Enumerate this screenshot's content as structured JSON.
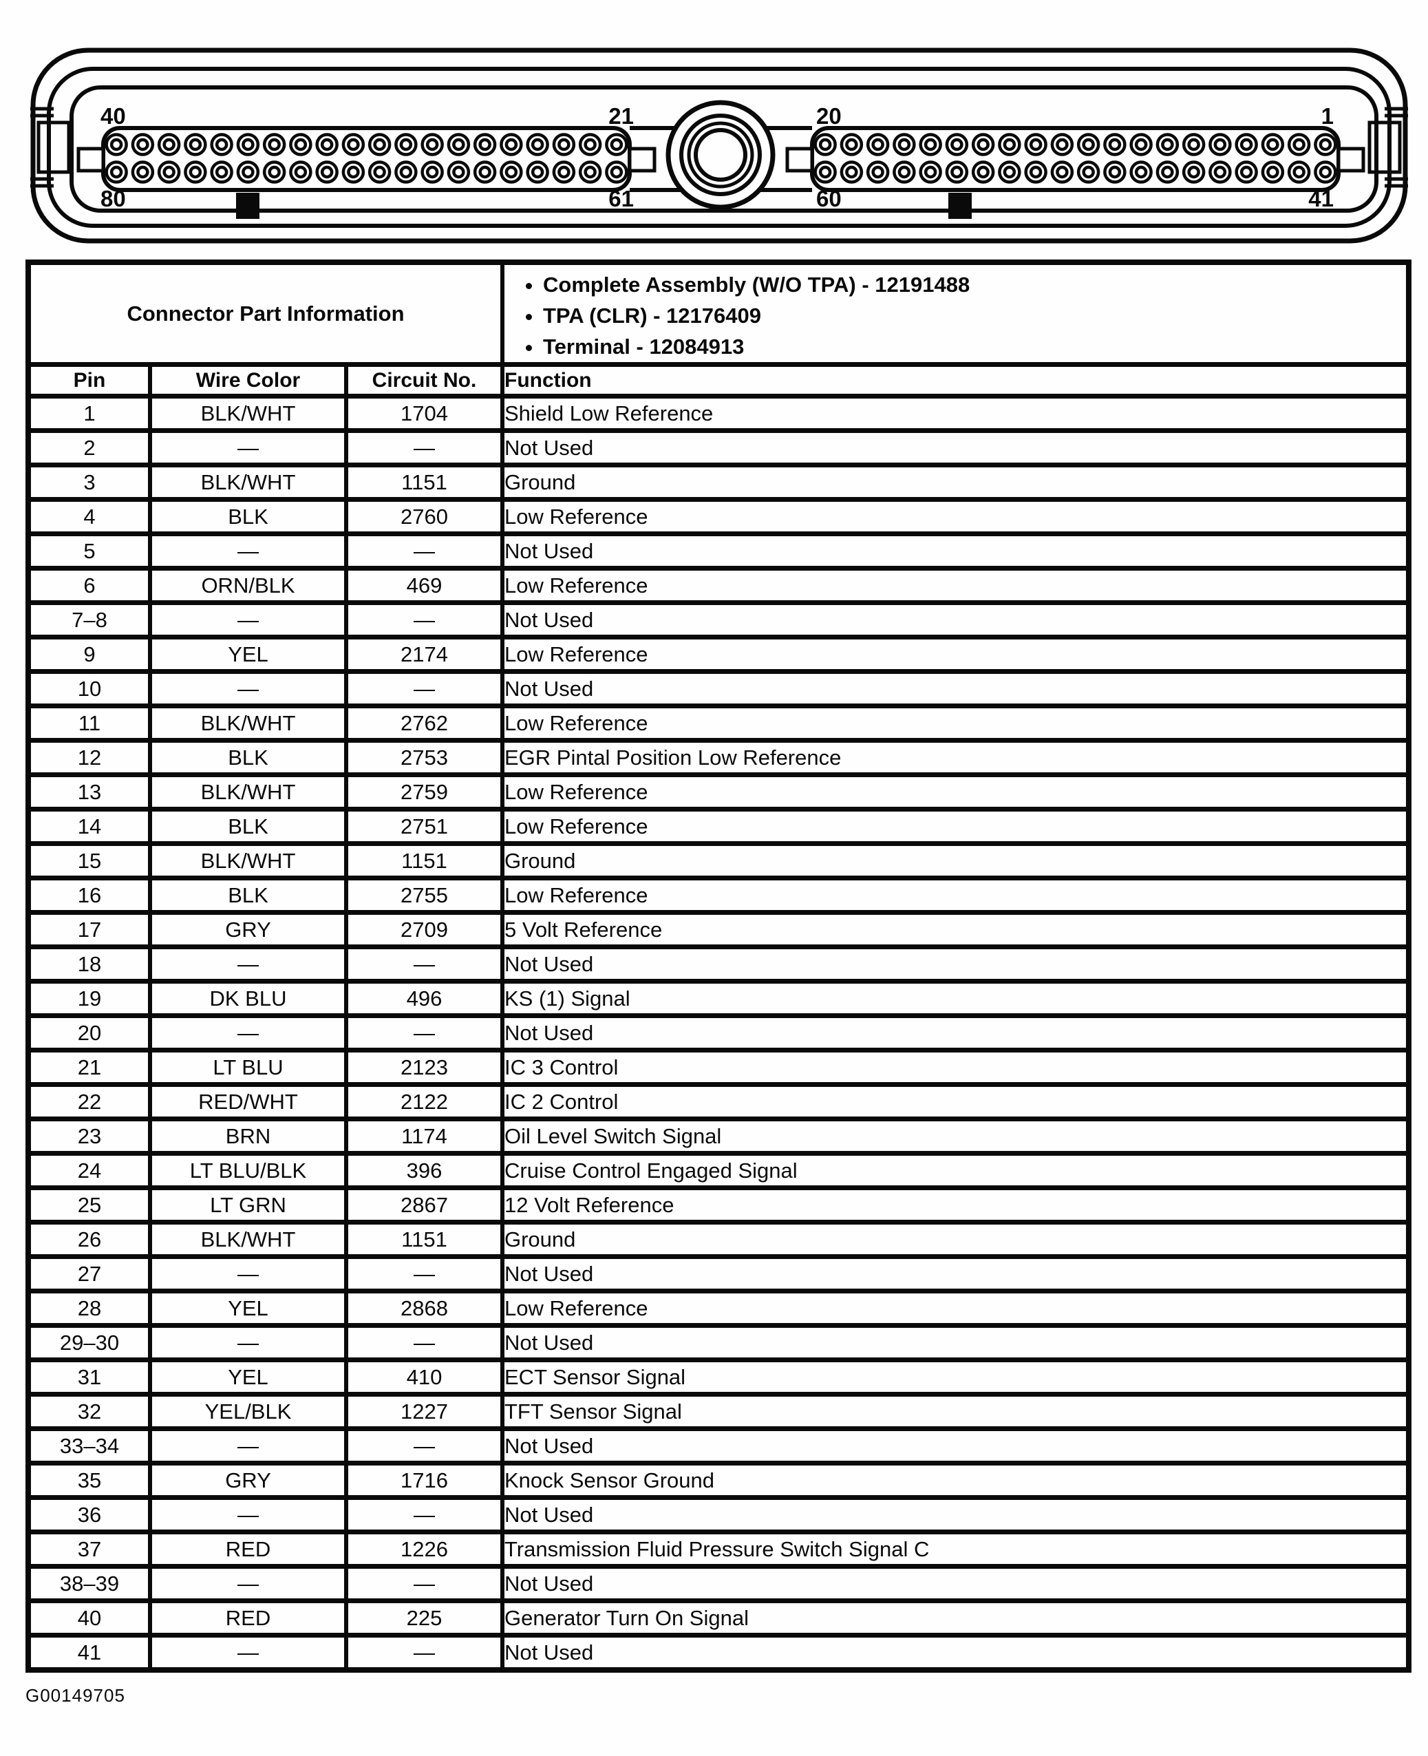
{
  "figure": {
    "pins_per_row": 20,
    "left_bank": {
      "top_left": "40",
      "top_right": "21",
      "bottom_left": "80",
      "bottom_right": "61"
    },
    "right_bank": {
      "top_left": "20",
      "top_right": "1",
      "bottom_left": "60",
      "bottom_right": "41"
    }
  },
  "part_info": {
    "title": "Connector Part Information",
    "items": [
      "Complete Assembly (W/O TPA) - 12191488",
      "TPA (CLR) - 12176409",
      "Terminal - 12084913"
    ]
  },
  "table": {
    "headers": [
      "Pin",
      "Wire Color",
      "Circuit No.",
      "Function"
    ],
    "rows": [
      [
        "1",
        "BLK/WHT",
        "1704",
        "Shield Low Reference"
      ],
      [
        "2",
        "—",
        "—",
        "Not Used"
      ],
      [
        "3",
        "BLK/WHT",
        "1151",
        "Ground"
      ],
      [
        "4",
        "BLK",
        "2760",
        "Low Reference"
      ],
      [
        "5",
        "—",
        "—",
        "Not Used"
      ],
      [
        "6",
        "ORN/BLK",
        "469",
        "Low Reference"
      ],
      [
        "7–8",
        "—",
        "—",
        "Not Used"
      ],
      [
        "9",
        "YEL",
        "2174",
        "Low Reference"
      ],
      [
        "10",
        "—",
        "—",
        "Not Used"
      ],
      [
        "11",
        "BLK/WHT",
        "2762",
        "Low Reference"
      ],
      [
        "12",
        "BLK",
        "2753",
        "EGR Pintal Position Low Reference"
      ],
      [
        "13",
        "BLK/WHT",
        "2759",
        "Low Reference"
      ],
      [
        "14",
        "BLK",
        "2751",
        "Low Reference"
      ],
      [
        "15",
        "BLK/WHT",
        "1151",
        "Ground"
      ],
      [
        "16",
        "BLK",
        "2755",
        "Low Reference"
      ],
      [
        "17",
        "GRY",
        "2709",
        "5 Volt Reference"
      ],
      [
        "18",
        "—",
        "—",
        "Not Used"
      ],
      [
        "19",
        "DK BLU",
        "496",
        "KS (1) Signal"
      ],
      [
        "20",
        "—",
        "—",
        "Not Used"
      ],
      [
        "21",
        "LT BLU",
        "2123",
        "IC 3 Control"
      ],
      [
        "22",
        "RED/WHT",
        "2122",
        "IC 2 Control"
      ],
      [
        "23",
        "BRN",
        "1174",
        "Oil Level Switch Signal"
      ],
      [
        "24",
        "LT BLU/BLK",
        "396",
        "Cruise Control Engaged Signal"
      ],
      [
        "25",
        "LT GRN",
        "2867",
        "12 Volt Reference"
      ],
      [
        "26",
        "BLK/WHT",
        "1151",
        "Ground"
      ],
      [
        "27",
        "—",
        "—",
        "Not Used"
      ],
      [
        "28",
        "YEL",
        "2868",
        "Low Reference"
      ],
      [
        "29–30",
        "—",
        "—",
        "Not Used"
      ],
      [
        "31",
        "YEL",
        "410",
        "ECT Sensor Signal"
      ],
      [
        "32",
        "YEL/BLK",
        "1227",
        "TFT Sensor Signal"
      ],
      [
        "33–34",
        "—",
        "—",
        "Not Used"
      ],
      [
        "35",
        "GRY",
        "1716",
        "Knock Sensor Ground"
      ],
      [
        "36",
        "—",
        "—",
        "Not Used"
      ],
      [
        "37",
        "RED",
        "1226",
        "Transmission Fluid Pressure Switch Signal C"
      ],
      [
        "38–39",
        "—",
        "—",
        "Not Used"
      ],
      [
        "40",
        "RED",
        "225",
        "Generator Turn On Signal"
      ],
      [
        "41",
        "—",
        "—",
        "Not Used"
      ]
    ]
  },
  "footer": {
    "figure_id": "G00149705"
  }
}
